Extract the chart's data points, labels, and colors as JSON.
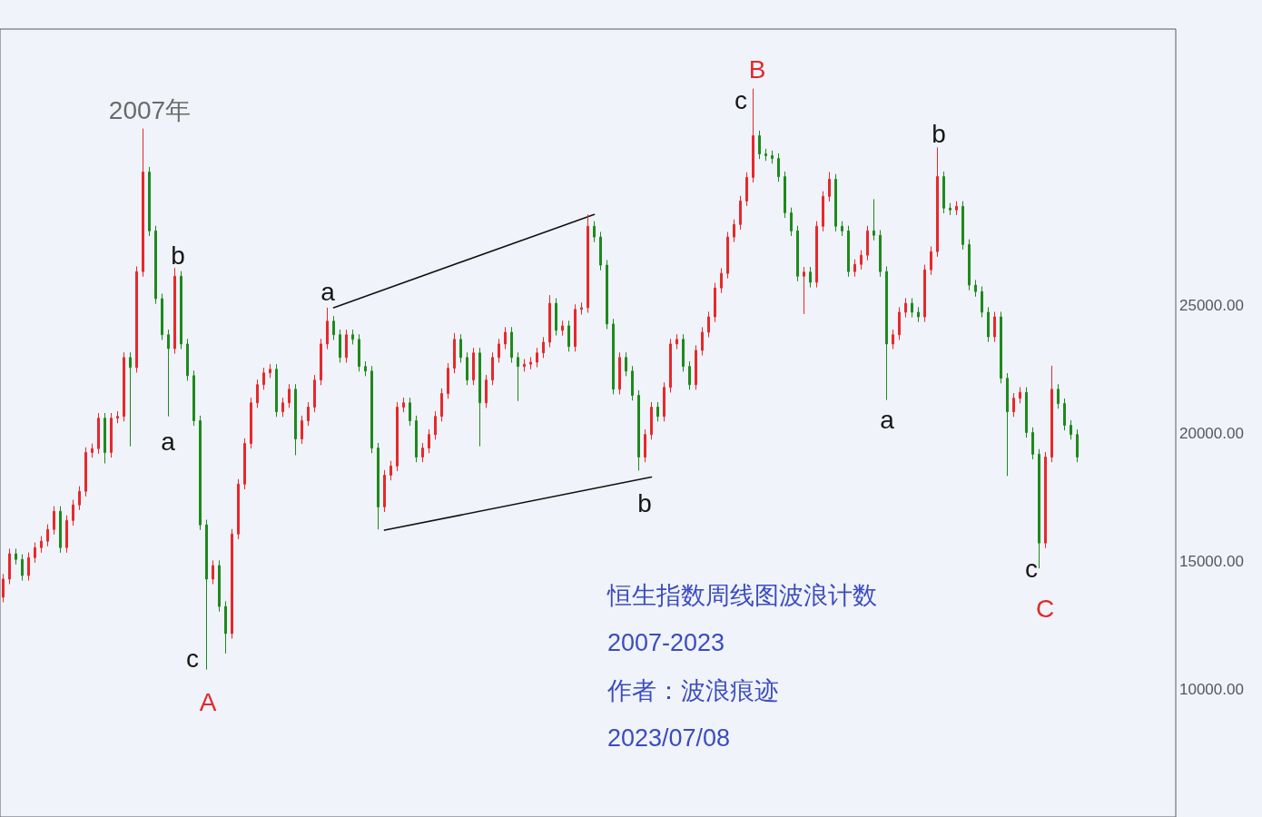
{
  "chart_data": {
    "type": "candlestick",
    "title": "恒生指数周线图波浪计数",
    "subtitle": "2007-2023",
    "annotations": [
      "2007年",
      "b",
      "a",
      "c",
      "A",
      "a",
      "b",
      "B",
      "c",
      "b",
      "a",
      "c",
      "C",
      "作者：波浪痕迹",
      "2023/07/08"
    ],
    "categories": [
      null,
      null,
      null,
      null,
      null,
      null,
      null,
      null,
      null,
      null,
      null,
      null,
      null,
      null,
      null,
      null,
      null,
      null,
      null,
      null,
      null,
      null,
      null,
      null,
      null,
      null,
      null,
      null,
      null,
      null,
      null,
      null,
      null,
      null,
      null,
      null,
      null,
      null,
      null,
      null,
      null,
      null,
      null,
      null,
      null,
      null,
      null,
      null,
      null,
      null,
      null,
      null,
      null,
      null,
      null,
      null,
      null,
      null,
      null,
      null,
      null,
      null,
      null,
      null,
      null,
      null,
      null,
      null,
      null,
      null,
      null,
      null,
      null,
      null,
      null,
      null,
      null,
      null,
      null,
      null,
      null,
      null,
      null,
      null,
      null,
      null,
      null,
      null,
      null,
      null,
      null,
      null,
      null,
      null,
      null,
      null,
      null,
      null,
      null,
      null,
      null,
      null,
      null,
      null,
      null,
      null,
      null,
      null,
      null,
      null,
      null,
      null,
      null,
      null,
      null,
      null,
      null,
      null,
      null,
      null,
      null,
      null,
      null,
      null,
      null,
      null,
      null,
      null,
      null,
      null,
      null,
      null,
      null,
      null,
      null,
      null,
      null,
      null,
      null,
      null,
      null,
      null,
      null,
      null,
      null,
      null,
      null,
      null,
      null,
      null,
      null,
      null,
      null,
      null,
      null,
      null,
      null,
      null,
      null,
      null,
      null,
      null,
      null,
      null,
      null,
      null,
      null,
      null,
      null,
      null,
      null,
      null,
      null,
      null,
      null,
      null,
      null,
      null,
      null,
      null,
      null,
      null,
      null,
      null,
      null
    ],
    "ohlc": [
      [
        13590,
        14500,
        13390,
        14300
      ],
      [
        14300,
        15490,
        14100,
        15290
      ],
      [
        15290,
        15490,
        14870,
        15070
      ],
      [
        15070,
        15270,
        14240,
        14440
      ],
      [
        14440,
        15340,
        14240,
        15140
      ],
      [
        15140,
        15730,
        14940,
        15530
      ],
      [
        15530,
        15980,
        15330,
        15780
      ],
      [
        15780,
        16440,
        15580,
        16240
      ],
      [
        16240,
        17150,
        16040,
        16950
      ],
      [
        16950,
        17150,
        15330,
        15530
      ],
      [
        15530,
        16790,
        15330,
        16590
      ],
      [
        16590,
        17400,
        16390,
        17200
      ],
      [
        17200,
        17930,
        17000,
        17730
      ],
      [
        17730,
        19450,
        17530,
        19250
      ],
      [
        19250,
        19600,
        19050,
        19400
      ],
      [
        19400,
        20790,
        19200,
        20590
      ],
      [
        20590,
        20790,
        18820,
        19250
      ],
      [
        19250,
        20790,
        19050,
        20590
      ],
      [
        20590,
        20860,
        20390,
        20660
      ],
      [
        20660,
        23160,
        20460,
        22960
      ],
      [
        22960,
        23160,
        19490,
        22570
      ],
      [
        22570,
        26520,
        22370,
        26320
      ],
      [
        26320,
        31910,
        26120,
        30210
      ],
      [
        30210,
        30410,
        27710,
        27910
      ],
      [
        27910,
        28110,
        25060,
        25260
      ],
      [
        25260,
        25460,
        23650,
        23850
      ],
      [
        23850,
        24050,
        20660,
        23310
      ],
      [
        23310,
        26460,
        23110,
        26140
      ],
      [
        26140,
        26340,
        23290,
        23490
      ],
      [
        23490,
        23690,
        22050,
        22250
      ],
      [
        22250,
        22450,
        20290,
        20490
      ],
      [
        20490,
        20690,
        16220,
        16420
      ],
      [
        16420,
        16620,
        10760,
        14300
      ],
      [
        14300,
        15030,
        14100,
        14830
      ],
      [
        14830,
        15030,
        13030,
        13230
      ],
      [
        13230,
        13430,
        11390,
        12170
      ],
      [
        12170,
        16260,
        11970,
        16060
      ],
      [
        16060,
        18210,
        15860,
        18010
      ],
      [
        18010,
        19800,
        17810,
        19600
      ],
      [
        19600,
        21390,
        19400,
        21190
      ],
      [
        21190,
        22100,
        20990,
        21900
      ],
      [
        21900,
        22560,
        21700,
        22360
      ],
      [
        22360,
        22700,
        22160,
        22500
      ],
      [
        22500,
        22700,
        20640,
        20840
      ],
      [
        20840,
        21390,
        20640,
        21190
      ],
      [
        21190,
        21920,
        20990,
        21720
      ],
      [
        21720,
        21920,
        19140,
        19780
      ],
      [
        19780,
        20690,
        19580,
        20490
      ],
      [
        20490,
        21220,
        20290,
        21020
      ],
      [
        21020,
        22280,
        20820,
        22080
      ],
      [
        22080,
        23690,
        21880,
        23490
      ],
      [
        23490,
        24910,
        23290,
        24380
      ],
      [
        24380,
        24580,
        23650,
        23850
      ],
      [
        23850,
        24050,
        22760,
        22960
      ],
      [
        22960,
        24050,
        22760,
        23850
      ],
      [
        23850,
        24050,
        23470,
        23670
      ],
      [
        23670,
        23870,
        22410,
        22610
      ],
      [
        22610,
        22810,
        22230,
        22430
      ],
      [
        22430,
        22630,
        19220,
        19420
      ],
      [
        19420,
        19620,
        16240,
        17120
      ],
      [
        17120,
        18560,
        16920,
        18360
      ],
      [
        18360,
        18920,
        18160,
        18720
      ],
      [
        18720,
        21220,
        18520,
        21020
      ],
      [
        21020,
        21390,
        20820,
        21190
      ],
      [
        21190,
        21390,
        20290,
        20490
      ],
      [
        20490,
        20690,
        18870,
        19070
      ],
      [
        19070,
        19620,
        18870,
        19420
      ],
      [
        19420,
        20150,
        19220,
        19950
      ],
      [
        19950,
        20860,
        19750,
        20660
      ],
      [
        20660,
        21750,
        20460,
        21550
      ],
      [
        21550,
        22740,
        21350,
        22540
      ],
      [
        22540,
        23920,
        22340,
        23670
      ],
      [
        23670,
        23870,
        22760,
        22960
      ],
      [
        22960,
        23160,
        21880,
        22080
      ],
      [
        22080,
        23340,
        21880,
        23140
      ],
      [
        23140,
        23340,
        19490,
        21190
      ],
      [
        21190,
        22280,
        20990,
        22080
      ],
      [
        22080,
        23160,
        21880,
        22960
      ],
      [
        22960,
        23690,
        22760,
        23490
      ],
      [
        23490,
        24150,
        23290,
        23950
      ],
      [
        23950,
        24150,
        22760,
        22960
      ],
      [
        22960,
        23160,
        21260,
        22610
      ],
      [
        22610,
        22900,
        22410,
        22700
      ],
      [
        22700,
        22980,
        22500,
        22780
      ],
      [
        22780,
        23340,
        22580,
        23140
      ],
      [
        23140,
        23760,
        22940,
        23560
      ],
      [
        23560,
        25400,
        23360,
        25080
      ],
      [
        25080,
        25280,
        23820,
        24020
      ],
      [
        24020,
        24400,
        23820,
        24200
      ],
      [
        24200,
        24400,
        23190,
        23390
      ],
      [
        23390,
        25040,
        23190,
        24840
      ],
      [
        24840,
        25110,
        24640,
        24910
      ],
      [
        24910,
        28550,
        24710,
        28090
      ],
      [
        28090,
        28290,
        27470,
        27670
      ],
      [
        27670,
        27870,
        26370,
        26570
      ],
      [
        26570,
        26770,
        24070,
        24270
      ],
      [
        24270,
        24470,
        21520,
        21720
      ],
      [
        21720,
        23160,
        21520,
        22960
      ],
      [
        22960,
        23160,
        22230,
        22430
      ],
      [
        22430,
        22630,
        21280,
        21480
      ],
      [
        21480,
        21680,
        18540,
        19070
      ],
      [
        19070,
        20150,
        18870,
        19950
      ],
      [
        19950,
        21220,
        19750,
        21020
      ],
      [
        21020,
        21220,
        20460,
        20660
      ],
      [
        20660,
        21990,
        20460,
        21790
      ],
      [
        21790,
        23690,
        21590,
        23490
      ],
      [
        23490,
        23870,
        23290,
        23670
      ],
      [
        23670,
        23870,
        22410,
        22610
      ],
      [
        22610,
        22810,
        21700,
        21900
      ],
      [
        21900,
        23440,
        21700,
        23240
      ],
      [
        23240,
        24150,
        23040,
        23950
      ],
      [
        23950,
        24750,
        23750,
        24550
      ],
      [
        24550,
        25880,
        24350,
        25680
      ],
      [
        25680,
        26450,
        25480,
        26250
      ],
      [
        26250,
        27870,
        26050,
        27670
      ],
      [
        27670,
        28360,
        27470,
        28160
      ],
      [
        28160,
        29280,
        27960,
        29080
      ],
      [
        29080,
        30200,
        28880,
        30000
      ],
      [
        30000,
        33470,
        29800,
        31630
      ],
      [
        31630,
        31830,
        30720,
        30920
      ],
      [
        30920,
        31120,
        30650,
        30850
      ],
      [
        30850,
        31050,
        30540,
        30740
      ],
      [
        30740,
        30940,
        29830,
        30030
      ],
      [
        30030,
        30230,
        28420,
        28620
      ],
      [
        28620,
        28820,
        27710,
        27910
      ],
      [
        27910,
        28110,
        25940,
        26140
      ],
      [
        26140,
        26500,
        24660,
        26300
      ],
      [
        26300,
        26500,
        25700,
        25900
      ],
      [
        25900,
        28290,
        25700,
        28090
      ],
      [
        28090,
        29460,
        27890,
        29260
      ],
      [
        29260,
        30210,
        29060,
        29930
      ],
      [
        29930,
        30130,
        27890,
        28090
      ],
      [
        28090,
        28290,
        27710,
        27910
      ],
      [
        27910,
        28110,
        26120,
        26320
      ],
      [
        26320,
        26800,
        26120,
        26600
      ],
      [
        26600,
        27160,
        26400,
        26960
      ],
      [
        26960,
        28110,
        26760,
        27910
      ],
      [
        27910,
        29150,
        27540,
        27740
      ],
      [
        27740,
        27940,
        26120,
        26320
      ],
      [
        26320,
        26520,
        21300,
        23490
      ],
      [
        23490,
        24050,
        23290,
        23850
      ],
      [
        23850,
        24930,
        23650,
        24730
      ],
      [
        24730,
        25280,
        24530,
        25080
      ],
      [
        25080,
        25280,
        24530,
        24730
      ],
      [
        24730,
        24930,
        24350,
        24550
      ],
      [
        24550,
        26590,
        24350,
        26390
      ],
      [
        26390,
        27300,
        26190,
        27100
      ],
      [
        27100,
        31170,
        26900,
        30030
      ],
      [
        30030,
        30230,
        28600,
        28800
      ],
      [
        28800,
        29000,
        28530,
        28730
      ],
      [
        28730,
        29070,
        28530,
        28870
      ],
      [
        28870,
        29070,
        27180,
        27380
      ],
      [
        27380,
        27580,
        25590,
        25790
      ],
      [
        25790,
        25990,
        25340,
        25540
      ],
      [
        25540,
        25740,
        24530,
        24730
      ],
      [
        24730,
        24930,
        23570,
        23770
      ],
      [
        23770,
        24750,
        23570,
        24550
      ],
      [
        24550,
        24750,
        21950,
        22150
      ],
      [
        22150,
        22350,
        18330,
        20840
      ],
      [
        20840,
        21570,
        20640,
        21370
      ],
      [
        21370,
        21800,
        21170,
        21600
      ],
      [
        21600,
        21800,
        19830,
        20030
      ],
      [
        20030,
        20230,
        18980,
        19180
      ],
      [
        19180,
        19380,
        14720,
        15710
      ],
      [
        15710,
        19270,
        15510,
        19070
      ],
      [
        19070,
        22640,
        18870,
        21720
      ],
      [
        21720,
        21920,
        20960,
        21160
      ],
      [
        21160,
        21360,
        20110,
        20310
      ],
      [
        20310,
        20510,
        19750,
        19950
      ],
      [
        19950,
        20150,
        18870,
        19070
      ],
      null,
      null,
      null,
      null,
      null,
      null,
      null,
      null,
      null,
      null,
      null,
      null,
      null,
      null,
      null
    ],
    "colors": [
      "#e8282b",
      "#e8282b",
      "#1d8a1d",
      "#1d8a1d",
      "#e8282b",
      "#e8282b",
      "#e8282b",
      "#e8282b",
      "#e8282b",
      "#1d8a1d",
      "#e8282b",
      "#e8282b",
      "#e8282b",
      "#e8282b",
      "#e8282b",
      "#e8282b",
      "#1d8a1d",
      "#e8282b",
      "#e8282b",
      "#e8282b",
      "#1d8a1d",
      "#e8282b",
      "#e8282b",
      "#1d8a1d",
      "#1d8a1d",
      "#1d8a1d",
      "#1d8a1d",
      "#e8282b",
      "#1d8a1d",
      "#1d8a1d",
      "#1d8a1d",
      "#1d8a1d",
      "#1d8a1d",
      "#e8282b",
      "#1d8a1d",
      "#1d8a1d",
      "#e8282b",
      "#e8282b",
      "#e8282b",
      "#e8282b",
      "#e8282b",
      "#e8282b",
      "#e8282b",
      "#1d8a1d",
      "#e8282b",
      "#e8282b",
      "#1d8a1d",
      "#e8282b",
      "#e8282b",
      "#e8282b",
      "#e8282b",
      "#e8282b",
      "#1d8a1d",
      "#1d8a1d",
      "#e8282b",
      "#1d8a1d",
      "#1d8a1d",
      "#1d8a1d",
      "#1d8a1d",
      "#1d8a1d",
      "#e8282b",
      "#e8282b",
      "#e8282b",
      "#e8282b",
      "#1d8a1d",
      "#1d8a1d",
      "#e8282b",
      "#e8282b",
      "#e8282b",
      "#e8282b",
      "#e8282b",
      "#e8282b",
      "#1d8a1d",
      "#1d8a1d",
      "#e8282b",
      "#1d8a1d",
      "#e8282b",
      "#e8282b",
      "#e8282b",
      "#e8282b",
      "#1d8a1d",
      "#1d8a1d",
      "#e8282b",
      "#e8282b",
      "#e8282b",
      "#e8282b",
      "#e8282b",
      "#1d8a1d",
      "#e8282b",
      "#1d8a1d",
      "#e8282b",
      "#e8282b",
      "#e8282b",
      "#1d8a1d",
      "#1d8a1d",
      "#1d8a1d",
      "#1d8a1d",
      "#e8282b",
      "#1d8a1d",
      "#1d8a1d",
      "#1d8a1d",
      "#e8282b",
      "#e8282b",
      "#1d8a1d",
      "#e8282b",
      "#e8282b",
      "#e8282b",
      "#1d8a1d",
      "#1d8a1d",
      "#e8282b",
      "#e8282b",
      "#e8282b",
      "#e8282b",
      "#e8282b",
      "#e8282b",
      "#e8282b",
      "#e8282b",
      "#e8282b",
      "#e8282b",
      "#1d8a1d",
      "#1d8a1d",
      "#1d8a1d",
      "#1d8a1d",
      "#1d8a1d",
      "#1d8a1d",
      "#1d8a1d",
      "#e8282b",
      "#1d8a1d",
      "#e8282b",
      "#e8282b",
      "#e8282b",
      "#1d8a1d",
      "#1d8a1d",
      "#1d8a1d",
      "#e8282b",
      "#e8282b",
      "#e8282b",
      "#1d8a1d",
      "#1d8a1d",
      "#1d8a1d",
      "#e8282b",
      "#e8282b",
      "#e8282b",
      "#1d8a1d",
      "#1d8a1d",
      "#e8282b",
      "#e8282b",
      "#e8282b",
      "#1d8a1d",
      "#1d8a1d",
      "#e8282b",
      "#1d8a1d",
      "#1d8a1d",
      "#1d8a1d",
      "#1d8a1d",
      "#1d8a1d",
      "#e8282b",
      "#1d8a1d",
      "#1d8a1d",
      "#e8282b",
      "#e8282b",
      "#1d8a1d",
      "#1d8a1d",
      "#1d8a1d",
      "#e8282b",
      "#e8282b",
      "#1d8a1d",
      "#1d8a1d",
      "#1d8a1d",
      "#1d8a1d",
      null,
      null,
      null,
      null,
      null,
      null,
      null,
      null,
      null,
      null,
      null,
      null,
      null,
      null,
      null
    ],
    "series": [
      {
        "type": "line",
        "color": "#111111",
        "values": [
          null,
          null,
          null,
          null,
          null,
          null,
          null,
          null,
          null,
          null,
          null,
          null,
          null,
          null,
          null,
          null,
          null,
          null,
          null,
          null,
          null,
          null,
          null,
          null,
          null,
          null,
          null,
          null,
          null,
          null,
          null,
          null,
          null,
          null,
          null,
          null,
          null,
          null,
          null,
          null,
          null,
          null,
          null,
          null,
          null,
          null,
          null,
          null,
          null,
          null,
          null,
          null,
          24910,
          null,
          null,
          null,
          null,
          null,
          null,
          null,
          null,
          null,
          null,
          null,
          null,
          null,
          null,
          null,
          null,
          null,
          null,
          null,
          null,
          null,
          null,
          null,
          null,
          null,
          null,
          null,
          null,
          null,
          null,
          null,
          null,
          null,
          null,
          null,
          null,
          null,
          null,
          null,
          null,
          28550,
          null,
          null,
          null,
          null,
          null,
          null,
          null,
          null,
          null,
          null,
          null,
          null,
          null,
          null,
          null,
          null,
          null,
          null,
          null,
          null,
          null,
          null,
          null,
          null,
          null,
          null,
          null,
          null,
          null,
          null,
          null,
          null,
          null,
          null,
          null,
          null,
          null,
          null,
          null,
          null,
          null,
          null,
          null,
          null,
          null,
          null,
          null,
          null,
          null,
          null,
          null,
          null,
          null,
          null,
          null,
          null,
          null,
          null,
          null,
          null,
          null,
          null,
          null,
          null,
          null,
          null,
          null,
          null,
          null,
          null,
          null,
          null,
          null,
          null,
          null,
          null,
          null,
          null,
          null,
          null,
          null,
          null,
          null,
          null,
          null,
          null,
          null,
          null,
          null,
          null,
          null
        ]
      },
      {
        "type": "line",
        "color": "#111111",
        "values": [
          null,
          null,
          null,
          null,
          null,
          null,
          null,
          null,
          null,
          null,
          null,
          null,
          null,
          null,
          null,
          null,
          null,
          null,
          null,
          null,
          null,
          null,
          null,
          null,
          null,
          null,
          null,
          null,
          null,
          null,
          null,
          null,
          null,
          null,
          null,
          null,
          null,
          null,
          null,
          null,
          null,
          null,
          null,
          null,
          null,
          null,
          null,
          null,
          null,
          null,
          null,
          null,
          null,
          null,
          null,
          null,
          null,
          null,
          null,
          null,
          16210,
          null,
          null,
          null,
          null,
          null,
          null,
          null,
          null,
          null,
          null,
          null,
          null,
          null,
          null,
          null,
          null,
          null,
          null,
          null,
          null,
          null,
          null,
          null,
          null,
          null,
          null,
          null,
          null,
          null,
          null,
          null,
          null,
          null,
          null,
          null,
          null,
          null,
          null,
          null,
          null,
          null,
          18290,
          null,
          null,
          null,
          null,
          null,
          null,
          null,
          null,
          null,
          null,
          null,
          null,
          null,
          null,
          null,
          null,
          null,
          null,
          null,
          null,
          null,
          null,
          null,
          null,
          null,
          null,
          null,
          null,
          null,
          null,
          null,
          null,
          null,
          null,
          null,
          null,
          null,
          null,
          null,
          null,
          null,
          null,
          null,
          null,
          null,
          null,
          null,
          null,
          null,
          null,
          null,
          null,
          null,
          null,
          null,
          null,
          null,
          null,
          null,
          null,
          null,
          null,
          null,
          null,
          null,
          null,
          null,
          null,
          null,
          null,
          null,
          null,
          null,
          null,
          null,
          null,
          null,
          null,
          null,
          null,
          null,
          null
        ]
      }
    ],
    "ylim": [
      5000,
      35800
    ],
    "yticks": [
      {
        "value": 10000,
        "label": "10000.00"
      },
      {
        "value": 15000,
        "label": "15000.00"
      },
      {
        "value": 20000,
        "label": "20000.00"
      },
      {
        "value": 25000,
        "label": "25000.00"
      }
    ],
    "tick_labels": "y",
    "marker": "none"
  }
}
